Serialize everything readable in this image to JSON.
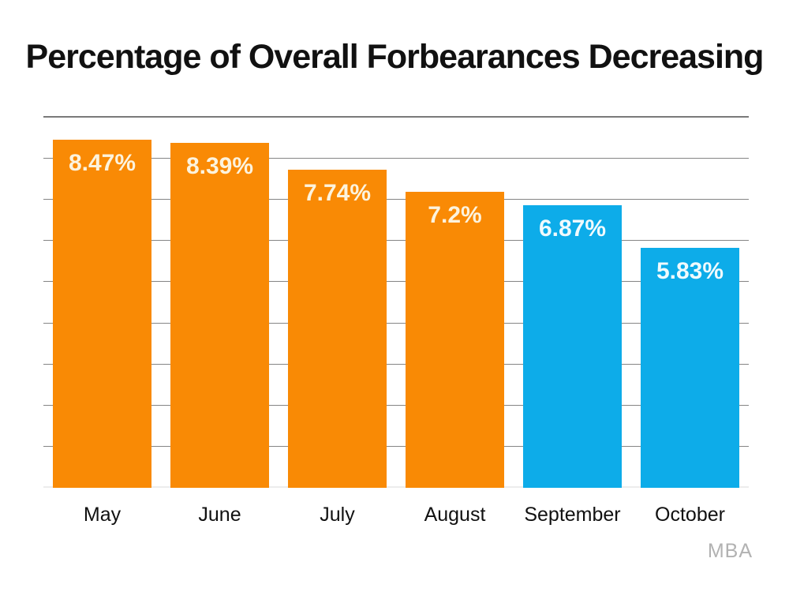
{
  "title": "Percentage of Overall Forbearances Decreasing",
  "source_label": "MBA",
  "colors": {
    "orange": "#F98A05",
    "blue": "#0DACE9",
    "label_on_orange": "#FCF3DE",
    "label_on_blue": "#F0FAFD",
    "grid": "#858585",
    "grid_top": "#7A7A7A",
    "grid_base": "#ECECEC",
    "title_text": "#111111",
    "axis_text": "#111111",
    "source_text": "#B2B2B2",
    "background": "#FFFFFF"
  },
  "chart_data": {
    "type": "bar",
    "title": "Percentage of Overall Forbearances Decreasing",
    "categories": [
      "May",
      "June",
      "July",
      "August",
      "September",
      "October"
    ],
    "values": [
      8.47,
      8.39,
      7.74,
      7.2,
      6.87,
      5.83
    ],
    "labels": [
      "8.47%",
      "8.39%",
      "7.74%",
      "7.2%",
      "6.87%",
      "5.83%"
    ],
    "bar_colors": [
      "orange",
      "orange",
      "orange",
      "orange",
      "blue",
      "blue"
    ],
    "xlabel": "",
    "ylabel": "",
    "ylim": [
      0,
      9
    ],
    "gridline_interval": 1,
    "grid": true,
    "legend": "none",
    "value_labels_position": "inside-top",
    "source": "MBA"
  }
}
